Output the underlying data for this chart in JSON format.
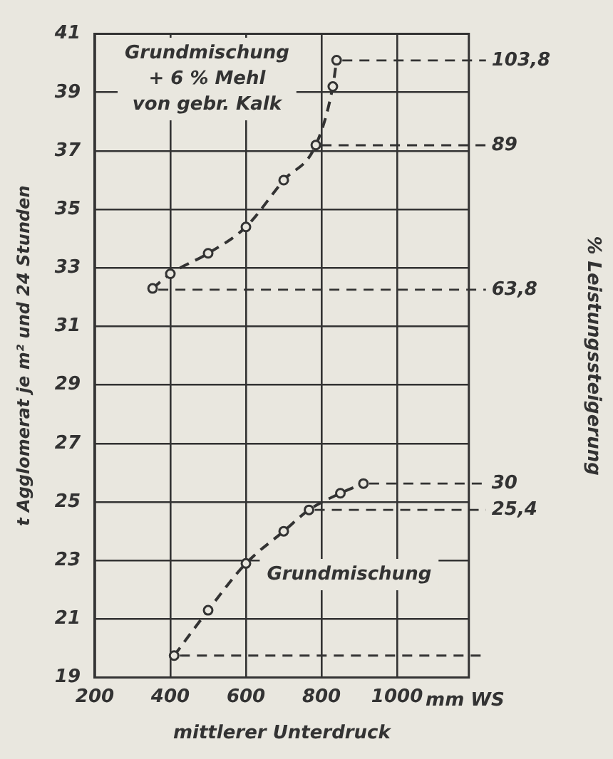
{
  "chart_data": {
    "type": "line",
    "xlabel": "mittlerer Unterdruck",
    "ylabel": "t Agglomerat je m² und 24 Stunden",
    "y2label": "% Leistungssteigerung",
    "series": [
      {
        "name": "Grundmischung\n+ 6 % Mehl\nvon gebr. Kalk",
        "color": "#333333",
        "x": [
          353,
          400,
          500,
          600,
          700,
          785,
          830,
          840
        ],
        "values": [
          32.3,
          32.8,
          33.5,
          34.4,
          36.0,
          37.2,
          39.2,
          40.1
        ]
      },
      {
        "name": "Grundmischung",
        "color": "#333333",
        "x": [
          410,
          500,
          600,
          700,
          767,
          850,
          911
        ],
        "values": [
          19.75,
          21.3,
          22.9,
          24.0,
          24.73,
          25.3,
          25.63
        ]
      }
    ],
    "xlim": [
      200,
      1190
    ],
    "xticks": [
      200,
      400,
      600,
      800,
      1000
    ],
    "ylim": [
      19,
      41
    ],
    "yticks": [
      19,
      21,
      23,
      25,
      27,
      29,
      31,
      33,
      35,
      37,
      39,
      41
    ],
    "y2lim": [
      -3.83,
      108.42
    ],
    "y2ticks": [
      {
        "value": 103.8,
        "label": "103,8"
      },
      89,
      {
        "value": 63.8,
        "label": "63,8"
      },
      30,
      {
        "value": 25.4,
        "label": "25,4"
      }
    ],
    "ref_lines": [
      {
        "axis": "y2",
        "value": 103.8
      },
      {
        "axis": "y2",
        "value": 89
      },
      {
        "axis": "y2",
        "value": 63.8
      },
      {
        "axis": "y2",
        "value": 30
      },
      {
        "axis": "y2",
        "value": 25.4
      },
      {
        "axis": "y2",
        "value": 0
      }
    ],
    "annotations": [
      "mm WS"
    ],
    "grid": true,
    "legend": false,
    "marker": "circle",
    "line_style": "dashed"
  }
}
